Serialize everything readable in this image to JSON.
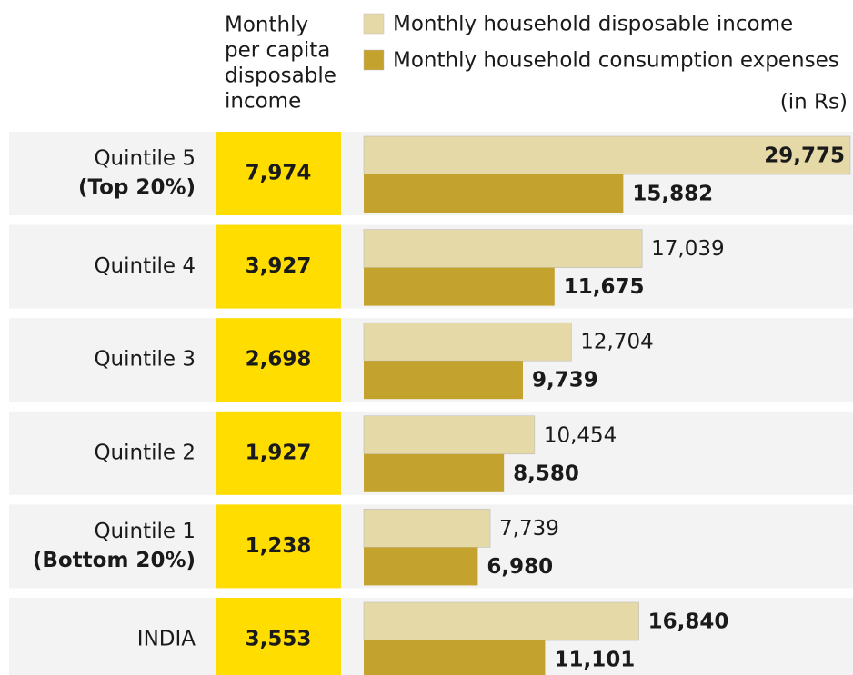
{
  "chart_data": {
    "type": "bar",
    "orientation": "horizontal",
    "categories": [
      [
        "Quintile 5",
        "(Top 20%)"
      ],
      [
        "Quintile 4"
      ],
      [
        "Quintile 3"
      ],
      [
        "Quintile 2"
      ],
      [
        "Quintile 1",
        "(Bottom 20%)"
      ],
      [
        "INDIA"
      ]
    ],
    "per_capita": {
      "label": [
        "Monthly",
        "per capita",
        "disposable",
        "income"
      ],
      "values": [
        7974,
        3927,
        2698,
        1927,
        1238,
        3553
      ],
      "value_labels": [
        "7,974",
        "3,927",
        "2,698",
        "1,927",
        "1,238",
        "3,553"
      ],
      "color": "#ffdd00"
    },
    "unit": "(in Rs)",
    "series": [
      {
        "name": "Monthly household disposable income",
        "color": "#e6d9a8",
        "values": [
          29775,
          17039,
          12704,
          10454,
          7739,
          16840
        ],
        "value_labels": [
          "29,775",
          "17,039",
          "12,704",
          "10,454",
          "7,739",
          "16,840"
        ],
        "bold_labels": [
          true,
          false,
          false,
          false,
          false,
          true
        ]
      },
      {
        "name": "Monthly household consumption expenses",
        "color": "#c4a22e",
        "values": [
          15882,
          11675,
          9739,
          8580,
          6980,
          11101
        ],
        "value_labels": [
          "15,882",
          "11,675",
          "9,739",
          "8,580",
          "6,980",
          "11,101"
        ],
        "bold_labels": [
          true,
          true,
          true,
          true,
          true,
          true
        ]
      }
    ],
    "legend": "top-right"
  }
}
